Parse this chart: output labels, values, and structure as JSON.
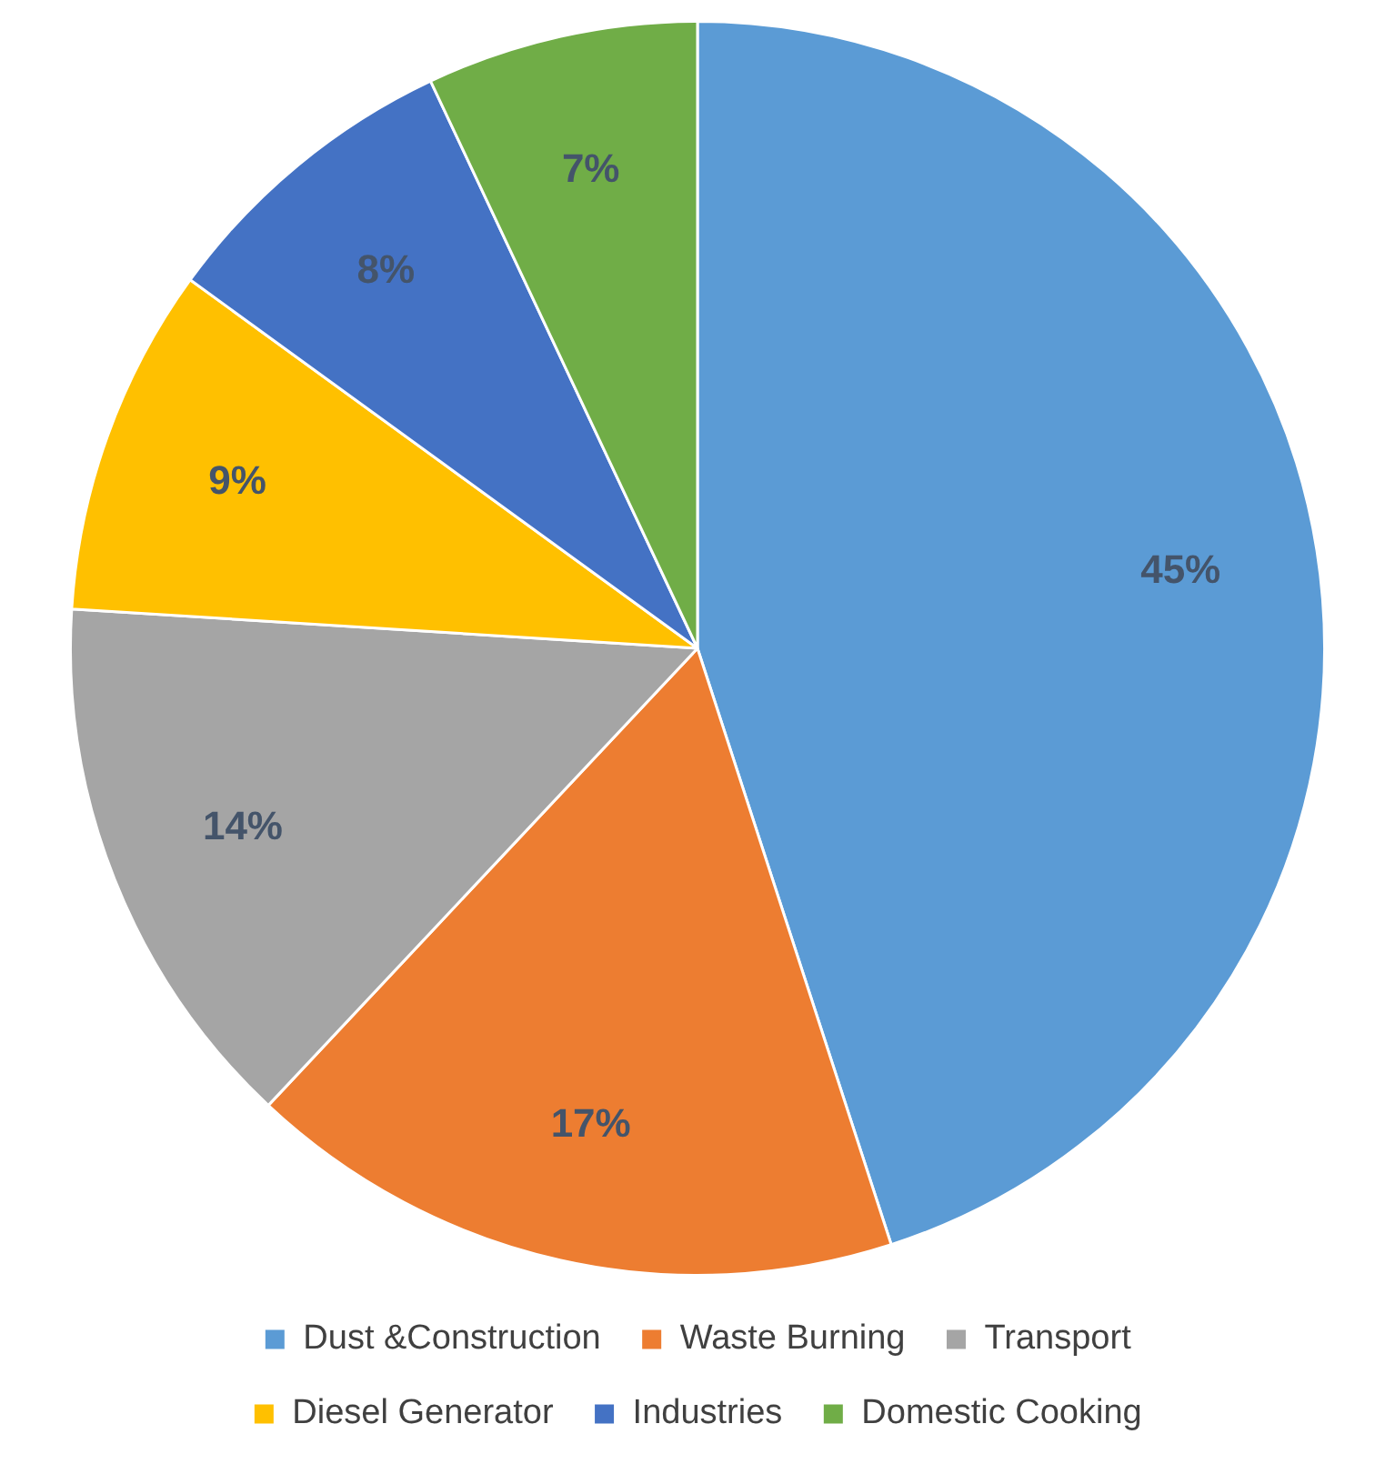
{
  "chart_data": {
    "type": "pie",
    "categories": [
      "Dust &Construction",
      "Waste Burning",
      "Transport",
      "Diesel Generator",
      "Industries",
      "Domestic Cooking"
    ],
    "values": [
      45,
      17,
      14,
      9,
      8,
      7
    ],
    "colors": [
      "#5b9bd5",
      "#ed7d31",
      "#a5a5a5",
      "#ffc000",
      "#4472c4",
      "#70ad47"
    ],
    "value_labels": [
      "45%",
      "17%",
      "14%",
      "9%",
      "8%",
      "7%"
    ],
    "legend": "bottom"
  }
}
